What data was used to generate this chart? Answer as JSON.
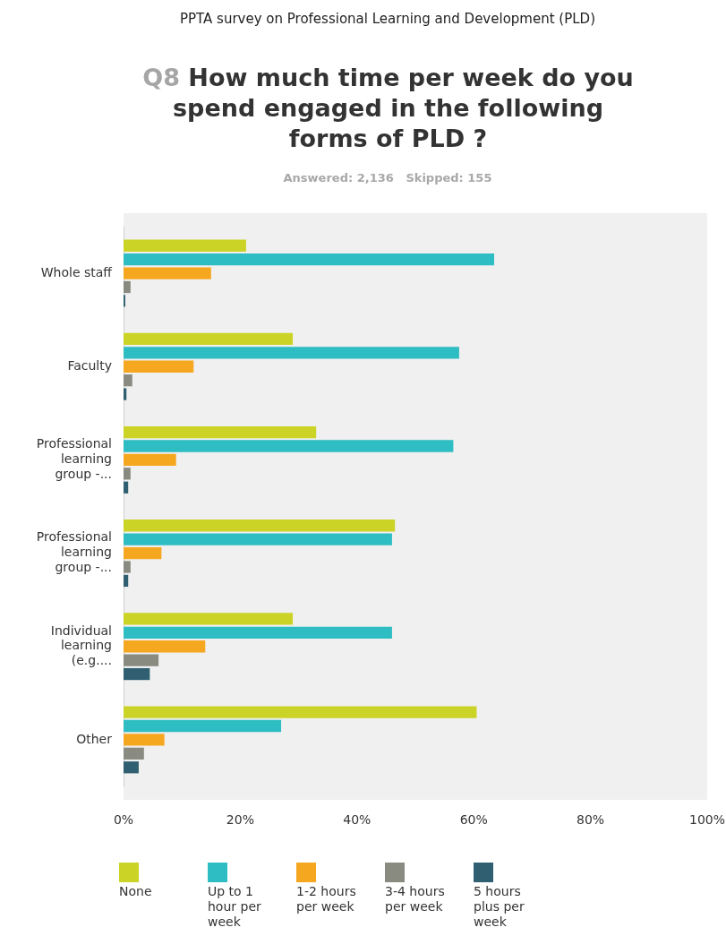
{
  "chart_data": {
    "type": "bar",
    "orientation": "horizontal",
    "title": "Q8 How much time per week do you spend engaged in the following forms of PLD ?",
    "subtitle": "Answered: 2,136   Skipped: 155",
    "annotations": [
      "PPTA survey on Professional Learning and Development (PLD)"
    ],
    "categories": [
      "Whole staff",
      "Faculty",
      "Professional learning group -...",
      "Professional learning group -...",
      "Individual learning (e.g....",
      "Other"
    ],
    "series": [
      {
        "name": "None",
        "color": "#ccd327",
        "values": [
          21,
          29,
          33,
          46.5,
          29,
          60.5
        ]
      },
      {
        "name": "Up to 1 hour per week",
        "color": "#2ebdc2",
        "values": [
          63.5,
          57.5,
          56.5,
          46,
          46,
          27
        ]
      },
      {
        "name": "1-2 hours per week",
        "color": "#f6a720",
        "values": [
          15,
          12,
          9,
          6.5,
          14,
          7
        ]
      },
      {
        "name": "3-4 hours per week",
        "color": "#8a8b80",
        "values": [
          1.2,
          1.5,
          1.2,
          1.2,
          6,
          3.5
        ]
      },
      {
        "name": "5 hours plus per week",
        "color": "#2f5f70",
        "values": [
          0.3,
          0.5,
          0.8,
          0.8,
          4.5,
          2.6
        ]
      }
    ],
    "xlim": [
      0,
      100
    ],
    "xticks": [
      {
        "value": 0,
        "label": "0%"
      },
      {
        "value": 20,
        "label": "20%"
      },
      {
        "value": 40,
        "label": "40%"
      },
      {
        "value": 60,
        "label": "60%"
      },
      {
        "value": 80,
        "label": "80%"
      },
      {
        "value": 100,
        "label": "100%"
      }
    ],
    "legend": "bottom"
  }
}
